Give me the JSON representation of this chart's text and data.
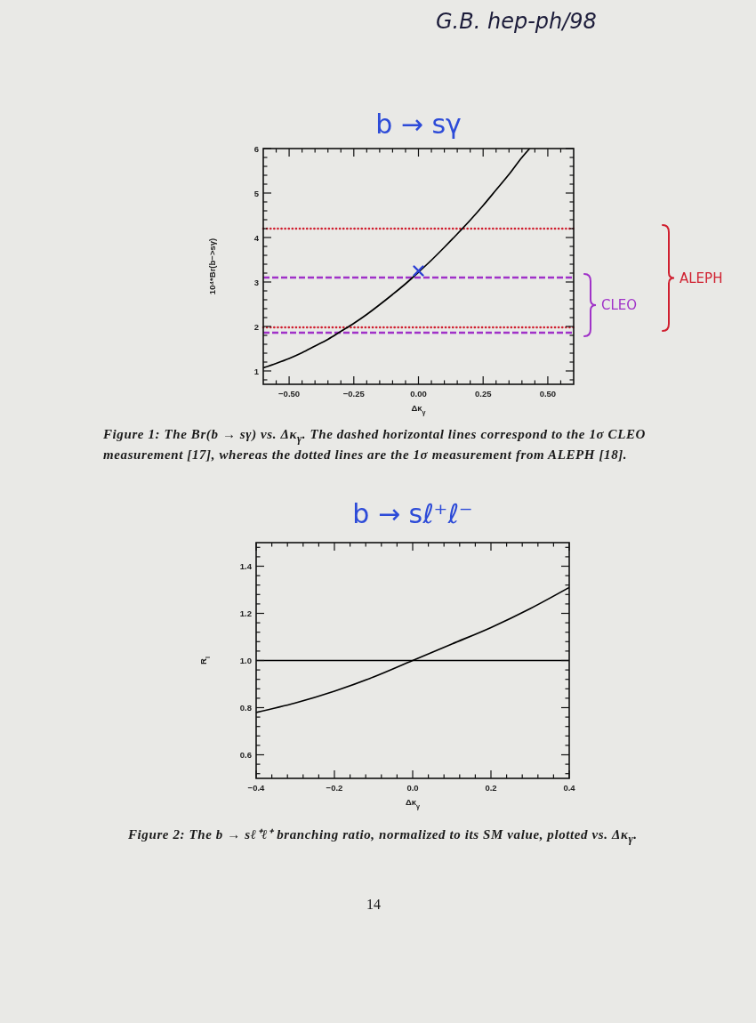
{
  "chart_data": [
    {
      "type": "line",
      "title": "b → sγ",
      "xlabel": "Δκ$_{γ}$",
      "ylabel": "10⁴*Br(b−>sγ)",
      "xlim": [
        -0.6,
        0.6
      ],
      "ylim": [
        0.7,
        6
      ],
      "xticks": [
        {
          "value": -0.55,
          "label": null
        },
        {
          "value": -0.5,
          "label": "−0.50"
        },
        {
          "value": -0.45,
          "label": null
        },
        {
          "value": -0.4,
          "label": null
        },
        {
          "value": -0.35,
          "label": null
        },
        {
          "value": -0.3,
          "label": null
        },
        {
          "value": -0.25,
          "label": "−0.25"
        },
        {
          "value": -0.2,
          "label": null
        },
        {
          "value": -0.15,
          "label": null
        },
        {
          "value": -0.1,
          "label": null
        },
        {
          "value": -0.05,
          "label": null
        },
        {
          "value": 0,
          "label": "0.00"
        },
        {
          "value": 0.05,
          "label": null
        },
        {
          "value": 0.1,
          "label": null
        },
        {
          "value": 0.15,
          "label": null
        },
        {
          "value": 0.2,
          "label": null
        },
        {
          "value": 0.25,
          "label": "0.25"
        },
        {
          "value": 0.3,
          "label": null
        },
        {
          "value": 0.35,
          "label": null
        },
        {
          "value": 0.4,
          "label": null
        },
        {
          "value": 0.45,
          "label": null
        },
        {
          "value": 0.5,
          "label": "0.50"
        },
        {
          "value": 0.55,
          "label": null
        }
      ],
      "yticks": [
        {
          "value": 0.8,
          "label": null
        },
        1,
        {
          "value": 1.2,
          "label": null
        },
        {
          "value": 1.4,
          "label": null
        },
        {
          "value": 1.6,
          "label": null
        },
        {
          "value": 1.8,
          "label": null
        },
        2,
        {
          "value": 2.2,
          "label": null
        },
        {
          "value": 2.4,
          "label": null
        },
        {
          "value": 2.6,
          "label": null
        },
        {
          "value": 2.8,
          "label": null
        },
        3,
        {
          "value": 3.2,
          "label": null
        },
        {
          "value": 3.4,
          "label": null
        },
        {
          "value": 3.6,
          "label": null
        },
        {
          "value": 3.8,
          "label": null
        },
        4,
        {
          "value": 4.2,
          "label": null
        },
        {
          "value": 4.4,
          "label": null
        },
        {
          "value": 4.6,
          "label": null
        },
        {
          "value": 4.8,
          "label": null
        },
        5,
        {
          "value": 5.2,
          "label": null
        },
        {
          "value": 5.4,
          "label": null
        },
        {
          "value": 5.6,
          "label": null
        },
        {
          "value": 5.8,
          "label": null
        },
        6
      ],
      "series": [
        {
          "color": "#000000",
          "x": [
            -0.6,
            -0.55,
            -0.5,
            -0.45,
            -0.4,
            -0.35,
            -0.3,
            -0.25,
            -0.2,
            -0.15,
            -0.1,
            -0.05,
            0,
            0.05,
            0.1,
            0.15,
            0.2,
            0.25,
            0.3,
            0.35,
            0.4,
            0.43
          ],
          "values": [
            1.07,
            1.17,
            1.28,
            1.41,
            1.56,
            1.71,
            1.89,
            2.07,
            2.27,
            2.49,
            2.72,
            2.96,
            3.22,
            3.49,
            3.78,
            4.08,
            4.39,
            4.72,
            5.07,
            5.42,
            5.8,
            6.0
          ]
        },
        {
          "type": "scatter",
          "color": "#2b3fd4",
          "marker": "cross",
          "x": [
            0
          ],
          "values": [
            3.25
          ]
        }
      ],
      "ref_lines": [
        {
          "axis": "y",
          "value": 3.1,
          "color": "#a032c8",
          "line_style": "dashed",
          "label": "CLEO"
        },
        {
          "axis": "y",
          "value": 1.86,
          "color": "#a032c8",
          "line_style": "dashed"
        },
        {
          "axis": "y",
          "value": 4.2,
          "color": "#d02030",
          "line_style": "dotted",
          "label": "ALEPH"
        },
        {
          "axis": "y",
          "value": 1.98,
          "color": "#d02030",
          "line_style": "dotted"
        }
      ],
      "annotations": [
        "G.B. hep-ph/98",
        "Figure 1: The Br(b → sγ) vs. Δκ$_{γ}$. The dashed horizontal lines correspond to the 1σ CLEO measurement [17], whereas the dotted lines are the 1σ measurement from ALEPH [18]."
      ]
    },
    {
      "type": "line",
      "title": "b → sℓ⁺ℓ⁻",
      "xlabel": "Δκ$_{γ}$",
      "ylabel": "R$_{l}$",
      "xlim": [
        -0.4,
        0.4
      ],
      "ylim": [
        0.5,
        1.5
      ],
      "xticks": [
        {
          "value": -0.4,
          "label": "−0.4"
        },
        {
          "value": -0.36,
          "label": null
        },
        {
          "value": -0.32,
          "label": null
        },
        {
          "value": -0.28,
          "label": null
        },
        {
          "value": -0.24,
          "label": null
        },
        {
          "value": -0.2,
          "label": "−0.2"
        },
        {
          "value": -0.16,
          "label": null
        },
        {
          "value": -0.12,
          "label": null
        },
        {
          "value": -0.08,
          "label": null
        },
        {
          "value": -0.04,
          "label": null
        },
        {
          "value": 0,
          "label": "0.0"
        },
        {
          "value": 0.04,
          "label": null
        },
        {
          "value": 0.08,
          "label": null
        },
        {
          "value": 0.12,
          "label": null
        },
        {
          "value": 0.16,
          "label": null
        },
        0.2,
        {
          "value": 0.24,
          "label": null
        },
        {
          "value": 0.28,
          "label": null
        },
        {
          "value": 0.32,
          "label": null
        },
        {
          "value": 0.36,
          "label": null
        },
        0.4
      ],
      "yticks": [
        {
          "value": 0.52,
          "label": null
        },
        {
          "value": 0.56,
          "label": null
        },
        0.6,
        {
          "value": 0.64,
          "label": null
        },
        {
          "value": 0.68,
          "label": null
        },
        {
          "value": 0.72,
          "label": null
        },
        {
          "value": 0.76,
          "label": null
        },
        0.8,
        {
          "value": 0.84,
          "label": null
        },
        {
          "value": 0.88,
          "label": null
        },
        {
          "value": 0.92,
          "label": null
        },
        {
          "value": 0.96,
          "label": null
        },
        {
          "value": 1.0,
          "label": "1.0"
        },
        {
          "value": 1.04,
          "label": null
        },
        {
          "value": 1.08,
          "label": null
        },
        {
          "value": 1.12,
          "label": null
        },
        {
          "value": 1.16,
          "label": null
        },
        1.2,
        {
          "value": 1.24,
          "label": null
        },
        {
          "value": 1.28,
          "label": null
        },
        {
          "value": 1.32,
          "label": null
        },
        {
          "value": 1.36,
          "label": null
        },
        1.4,
        {
          "value": 1.44,
          "label": null
        },
        {
          "value": 1.48,
          "label": null
        }
      ],
      "series": [
        {
          "color": "#000000",
          "x": [
            -0.4,
            -0.3,
            -0.2,
            -0.1,
            0,
            0.1,
            0.2,
            0.3,
            0.4
          ],
          "values": [
            0.78,
            0.82,
            0.87,
            0.93,
            1.0,
            1.07,
            1.14,
            1.22,
            1.31
          ]
        }
      ],
      "ref_lines": [
        {
          "axis": "y",
          "value": 1.0,
          "color": "#000000",
          "line_style": "solid"
        }
      ],
      "annotations": [
        "Figure 2: The b → sℓ⁺ℓ⁺ branching ratio, normalized to its SM value, plotted vs. Δκ$_{γ}$.",
        "14"
      ]
    }
  ]
}
